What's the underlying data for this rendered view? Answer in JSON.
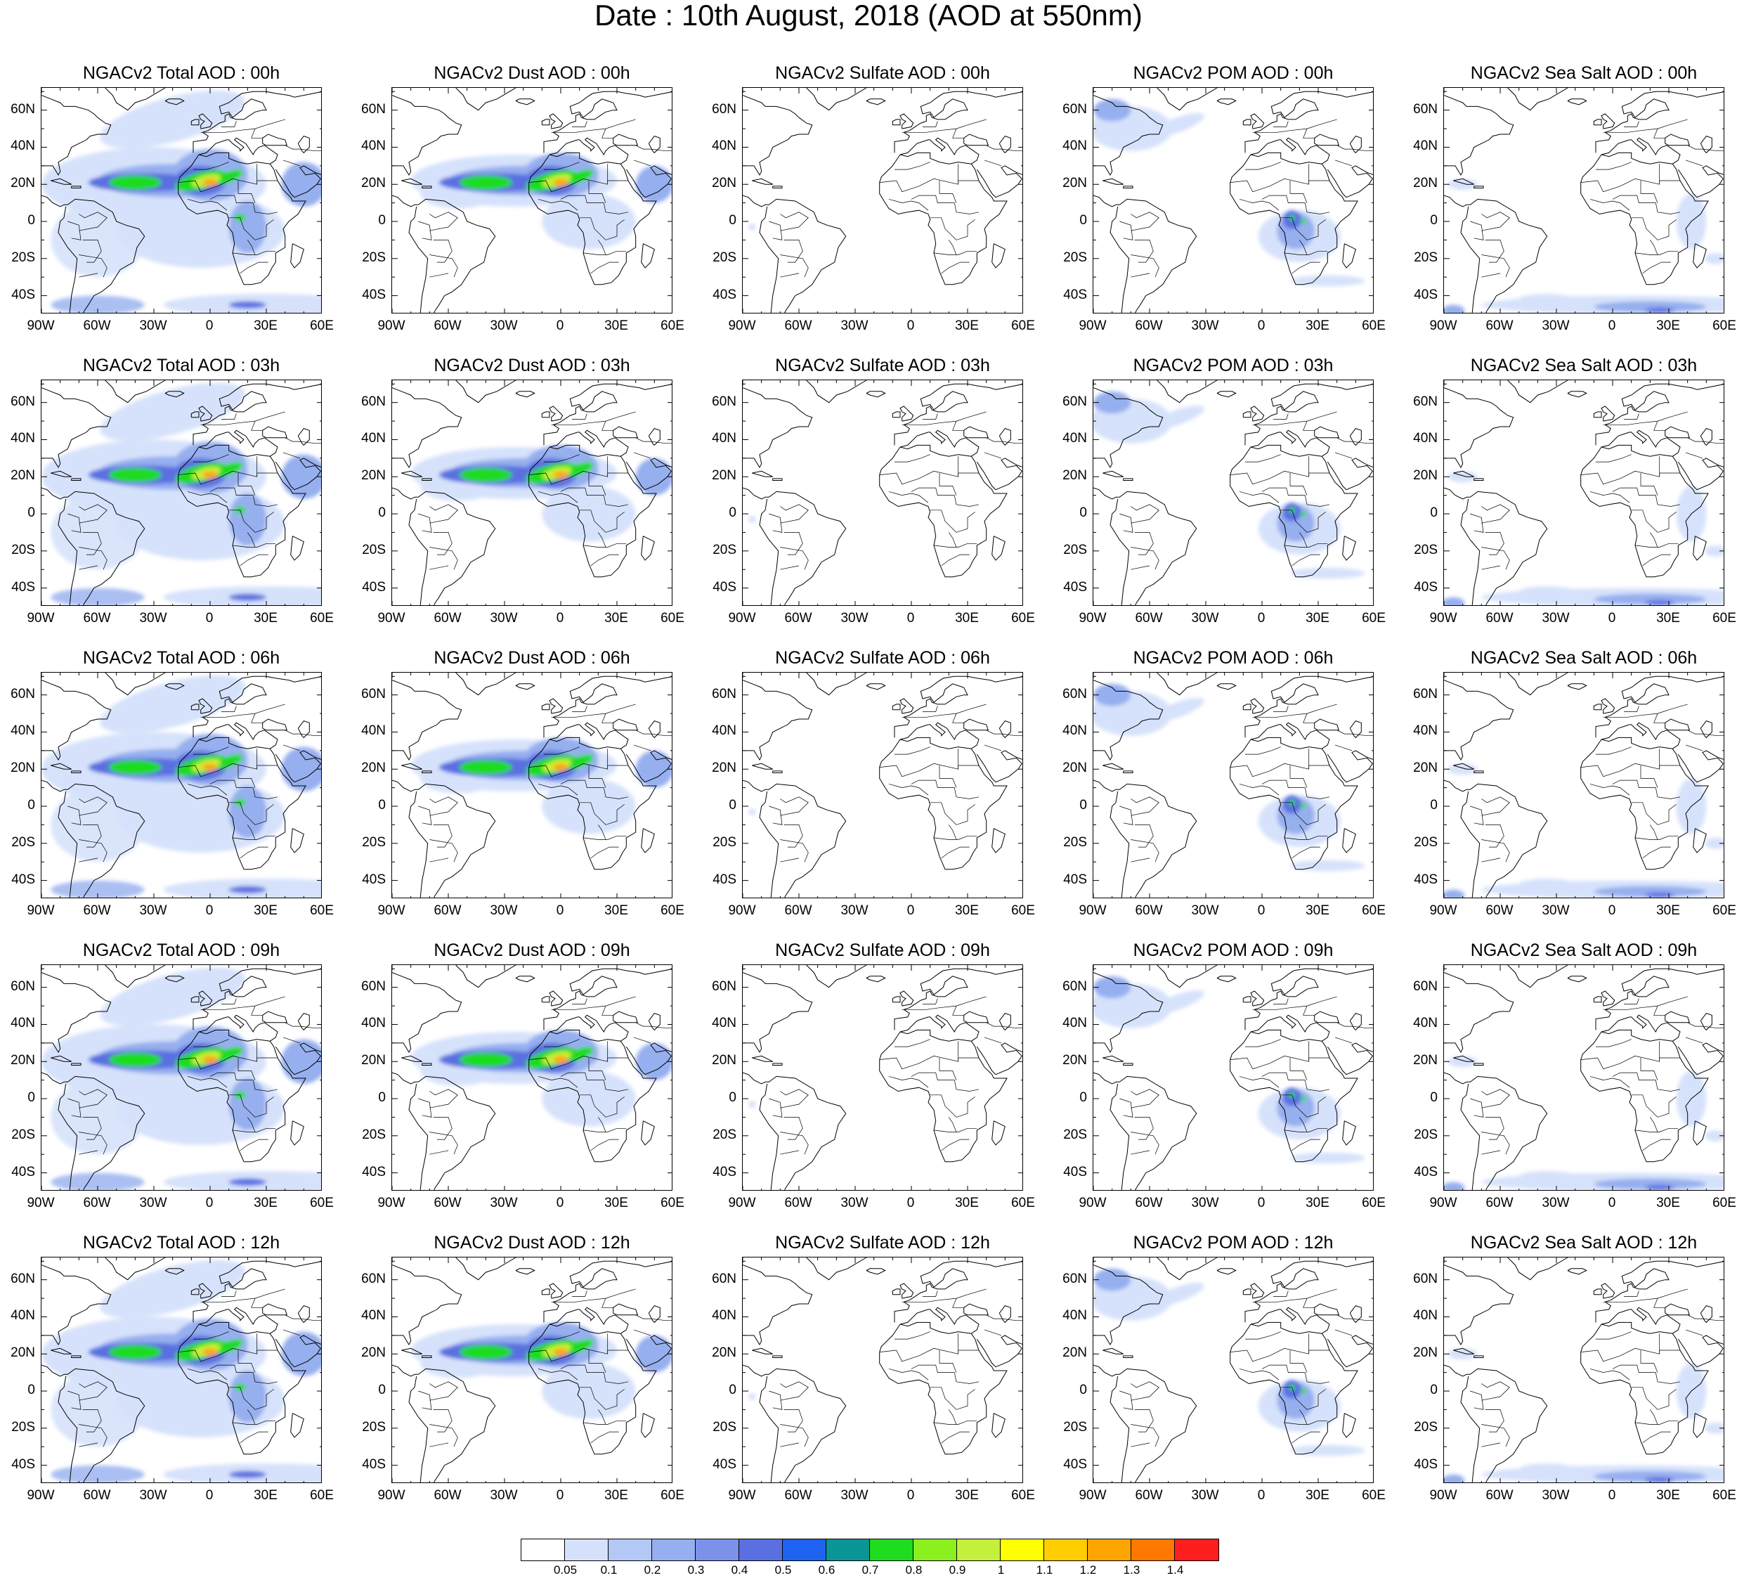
{
  "title": "Date : 10th August, 2018 (AOD at 550nm)",
  "panels": [
    [
      {
        "title": "NGACv2 Total AOD : 00h",
        "kind": "total"
      },
      {
        "title": "NGACv2 Dust AOD : 00h",
        "kind": "dust"
      },
      {
        "title": "NGACv2 Sulfate AOD : 00h",
        "kind": "sulfate"
      },
      {
        "title": "NGACv2 POM AOD : 00h",
        "kind": "pom"
      },
      {
        "title": "NGACv2 Sea Salt AOD : 00h",
        "kind": "seasalt"
      }
    ],
    [
      {
        "title": "NGACv2 Total AOD : 03h",
        "kind": "total"
      },
      {
        "title": "NGACv2 Dust AOD : 03h",
        "kind": "dust"
      },
      {
        "title": "NGACv2 Sulfate AOD : 03h",
        "kind": "sulfate"
      },
      {
        "title": "NGACv2 POM AOD : 03h",
        "kind": "pom"
      },
      {
        "title": "NGACv2 Sea Salt AOD : 03h",
        "kind": "seasalt"
      }
    ],
    [
      {
        "title": "NGACv2 Total AOD : 06h",
        "kind": "total"
      },
      {
        "title": "NGACv2 Dust AOD : 06h",
        "kind": "dust"
      },
      {
        "title": "NGACv2 Sulfate AOD : 06h",
        "kind": "sulfate"
      },
      {
        "title": "NGACv2 POM AOD : 06h",
        "kind": "pom"
      },
      {
        "title": "NGACv2 Sea Salt AOD : 06h",
        "kind": "seasalt"
      }
    ],
    [
      {
        "title": "NGACv2 Total AOD : 09h",
        "kind": "total"
      },
      {
        "title": "NGACv2 Dust AOD : 09h",
        "kind": "dust"
      },
      {
        "title": "NGACv2 Sulfate AOD : 09h",
        "kind": "sulfate"
      },
      {
        "title": "NGACv2 POM AOD : 09h",
        "kind": "pom"
      },
      {
        "title": "NGACv2 Sea Salt  AOD : 09h",
        "kind": "seasalt"
      }
    ],
    [
      {
        "title": "NGACv2 Total AOD  : 12h",
        "kind": "total"
      },
      {
        "title": "NGACv2 Dust AOD : 12h",
        "kind": "dust"
      },
      {
        "title": "NGACv2 Sulfate AOD : 12h",
        "kind": "sulfate"
      },
      {
        "title": "NGACv2 POM  AOD : 12h",
        "kind": "pom"
      },
      {
        "title": "NGACv2 Sea Salt  AOD : 12h",
        "kind": "seasalt"
      }
    ]
  ],
  "axes": {
    "y_labels": [
      "60N",
      "40N",
      "20N",
      "0",
      "20S",
      "40S"
    ],
    "x_labels": [
      "90W",
      "60W",
      "30W",
      "0",
      "30E",
      "60E"
    ]
  },
  "colorbar": {
    "colors": [
      "#ffffff",
      "#d6e2fb",
      "#b4c8f6",
      "#96afef",
      "#7c92ea",
      "#5a6fe0",
      "#1e64f0",
      "#0a9696",
      "#1edc1e",
      "#8cf01e",
      "#c3f03c",
      "#ffff00",
      "#ffcd00",
      "#ffa500",
      "#ff7800",
      "#ff1e1e"
    ],
    "labels": [
      "0.05",
      "0.1",
      "0.2",
      "0.3",
      "0.4",
      "0.5",
      "0.6",
      "0.7",
      "0.8",
      "0.9",
      "1",
      "1.1",
      "1.2",
      "1.3",
      "1.4"
    ]
  },
  "colors": {
    "aod_light": "#d6e2fb",
    "aod_mid": "#96afef",
    "aod_deep": "#5a6fe0",
    "aod_green": "#1edc1e",
    "aod_yellowgreen": "#c3f03c",
    "aod_orange": "#ffa500",
    "aod_red": "#ff1e1e"
  }
}
